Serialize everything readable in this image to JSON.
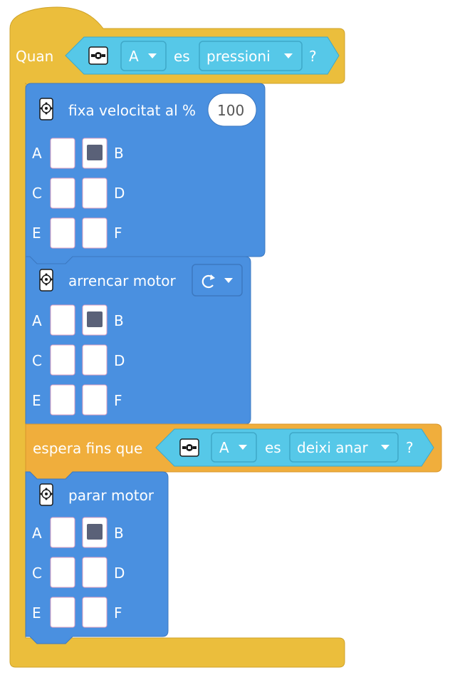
{
  "event_block": {
    "label": "Quan",
    "port_value": "A",
    "connector": "es",
    "state_value": "pressioni",
    "question": "?"
  },
  "set_speed_block": {
    "label": "fixa velocitat al %",
    "speed_value": "100",
    "ports": [
      "A",
      "B",
      "C",
      "D",
      "E",
      "F"
    ],
    "selected_port": "B"
  },
  "start_motor_block": {
    "label": "arrencar motor",
    "direction_icon": "rotate-clockwise-icon",
    "ports": [
      "A",
      "B",
      "C",
      "D",
      "E",
      "F"
    ],
    "selected_port": "B"
  },
  "wait_until_block": {
    "label": "espera fins que",
    "port_value": "A",
    "connector": "es",
    "state_value": "deixi anar",
    "question": "?"
  },
  "stop_motor_block": {
    "label": "parar motor",
    "ports": [
      "A",
      "B",
      "C",
      "D",
      "E",
      "F"
    ],
    "selected_port": "B"
  },
  "colors": {
    "event_yellow": "#EBBE3C",
    "event_border": "#CFA32B",
    "motor_blue": "#4A90E0",
    "motor_border": "#3C78C0",
    "sensor_cyan": "#56C8E8",
    "sensor_border": "#3FA8C8",
    "control_orange": "#F0AE3C",
    "selected_square": "#5A6178"
  }
}
